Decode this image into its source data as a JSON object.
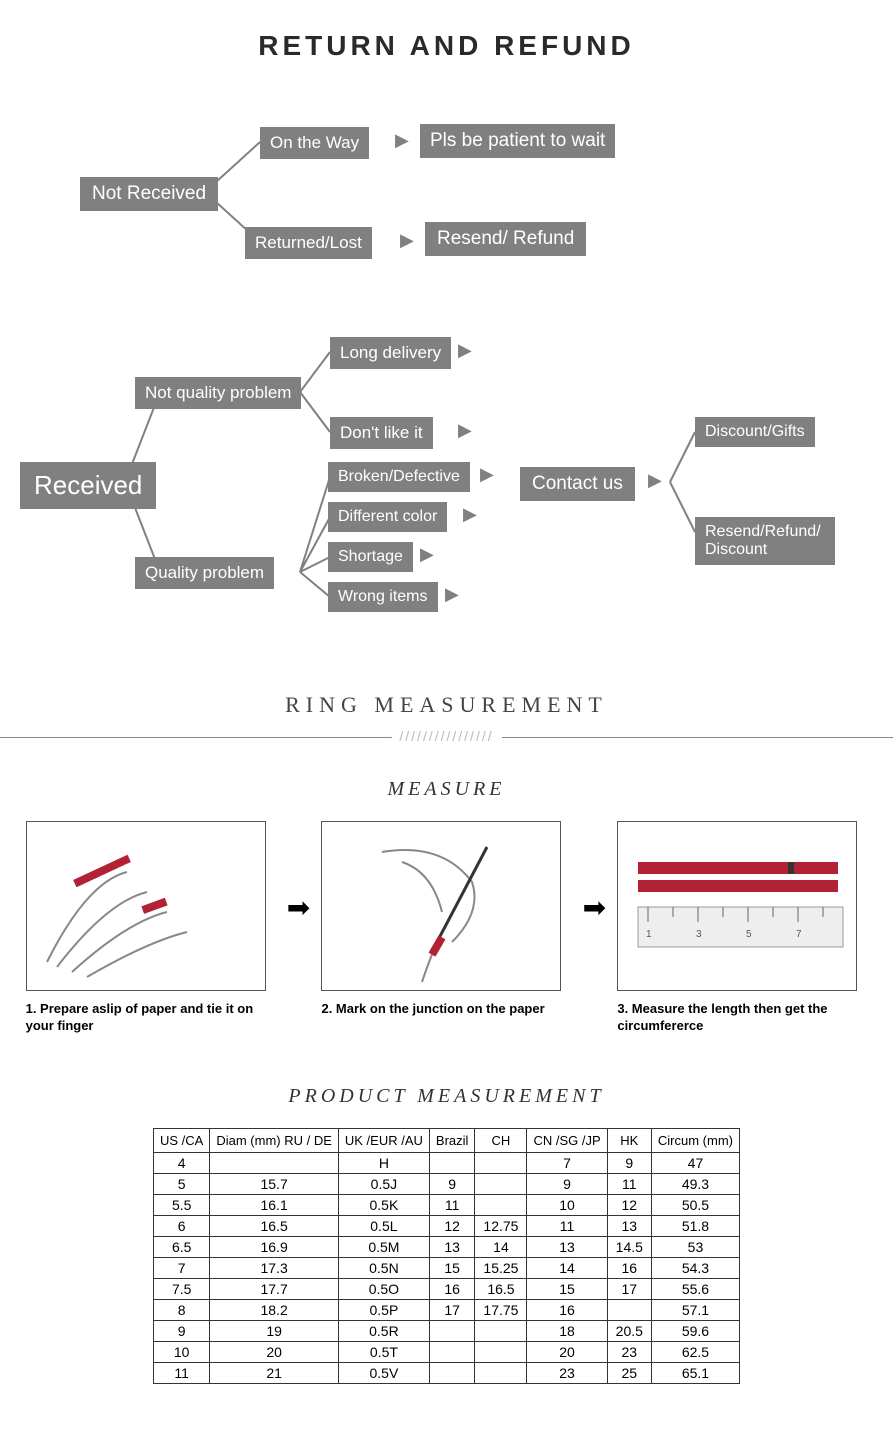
{
  "titles": {
    "return_refund": "RETURN AND REFUND",
    "ring_measurement": "RING MEASUREMENT",
    "measure": "MEASURE",
    "product_measurement": "PRODUCT MEASUREMENT"
  },
  "flow1": {
    "root": "Not Received",
    "branch_a": "On the Way",
    "result_a": "Pls be patient to wait",
    "branch_b": "Returned/Lost",
    "result_b": "Resend/ Refund"
  },
  "flow2": {
    "root": "Received",
    "branch_a": "Not quality problem",
    "branch_b": "Quality problem",
    "a_items": [
      "Long delivery",
      "Don't like it"
    ],
    "b_items": [
      "Broken/Defective",
      "Different color",
      "Shortage",
      "Wrong items"
    ],
    "contact": "Contact us",
    "result_a": "Discount/Gifts",
    "result_b": "Resend/Refund/ Discount"
  },
  "hatch": "////////////////",
  "steps": {
    "s1": "1. Prepare aslip of paper and tie it on your finger",
    "s2": "2. Mark on the junction on the paper",
    "s3": "3. Measure the length then get the circumfererce"
  },
  "table": {
    "columns": [
      "US /CA",
      "Diam (mm) RU / DE",
      "UK /EUR /AU",
      "Brazil",
      "CH",
      "CN /SG /JP",
      "HK",
      "Circum (mm)"
    ],
    "rows": [
      [
        "4",
        "",
        "H",
        "",
        "",
        "7",
        "9",
        "47"
      ],
      [
        "5",
        "15.7",
        "0.5J",
        "9",
        "",
        "9",
        "11",
        "49.3"
      ],
      [
        "5.5",
        "16.1",
        "0.5K",
        "11",
        "",
        "10",
        "12",
        "50.5"
      ],
      [
        "6",
        "16.5",
        "0.5L",
        "12",
        "12.75",
        "11",
        "13",
        "51.8"
      ],
      [
        "6.5",
        "16.9",
        "0.5M",
        "13",
        "14",
        "13",
        "14.5",
        "53"
      ],
      [
        "7",
        "17.3",
        "0.5N",
        "15",
        "15.25",
        "14",
        "16",
        "54.3"
      ],
      [
        "7.5",
        "17.7",
        "0.5O",
        "16",
        "16.5",
        "15",
        "17",
        "55.6"
      ],
      [
        "8",
        "18.2",
        "0.5P",
        "17",
        "17.75",
        "16",
        "",
        "57.1"
      ],
      [
        "9",
        "19",
        "0.5R",
        "",
        "",
        "18",
        "20.5",
        "59.6"
      ],
      [
        "10",
        "20",
        "0.5T",
        "",
        "",
        "20",
        "23",
        "62.5"
      ],
      [
        "11",
        "21",
        "0.5V",
        "",
        "",
        "23",
        "25",
        "65.1"
      ]
    ]
  },
  "colors": {
    "box_bg": "#808080",
    "box_text": "#ffffff",
    "accent": "#b22234"
  }
}
